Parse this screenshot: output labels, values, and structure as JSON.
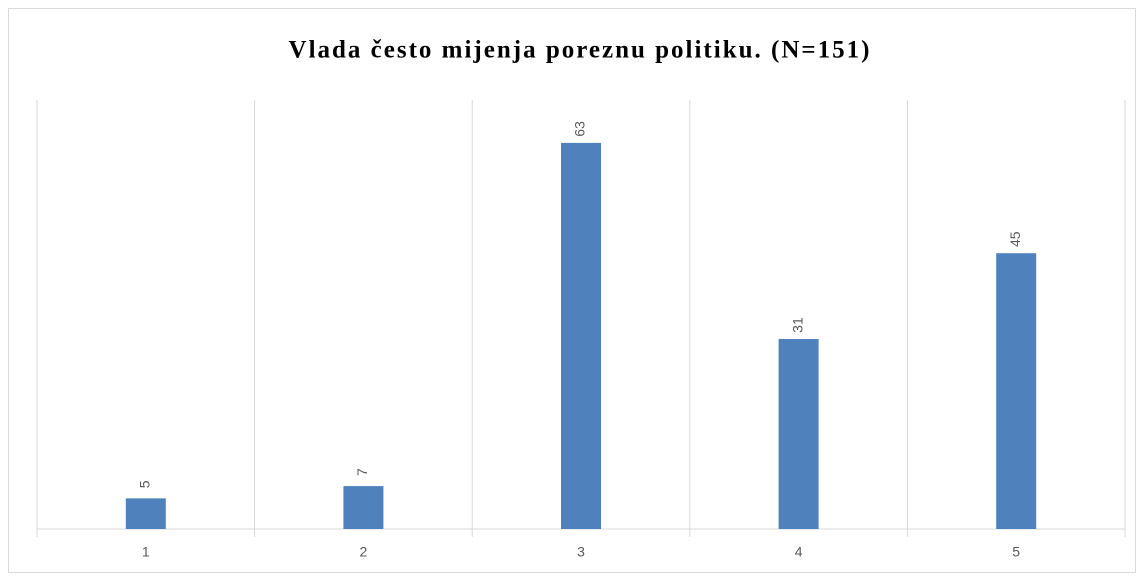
{
  "chart_data": {
    "type": "bar",
    "title": "Vlada često mijenja poreznu politiku. (N=151)",
    "categories": [
      "1",
      "2",
      "3",
      "4",
      "5"
    ],
    "values": [
      5,
      7,
      63,
      31,
      45
    ],
    "color": "#4f81bd",
    "ylim": [
      0,
      70
    ],
    "data_labels": true
  }
}
